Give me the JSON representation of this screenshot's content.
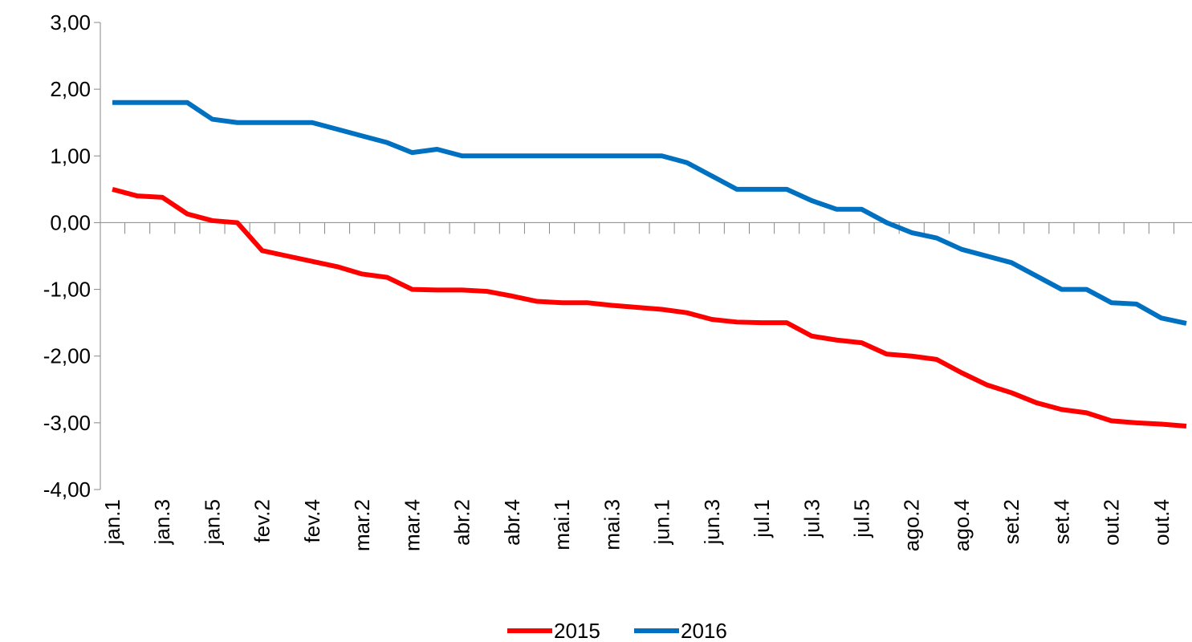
{
  "chart_data": {
    "type": "line",
    "categories": [
      "jan.1",
      null,
      "jan.3",
      null,
      "jan.5",
      null,
      "fev.2",
      null,
      "fev.4",
      null,
      "mar.2",
      null,
      "mar.4",
      null,
      "abr.2",
      null,
      "abr.4",
      null,
      "mai.1",
      null,
      "mai.3",
      null,
      "jun.1",
      null,
      "jun.3",
      null,
      "jul.1",
      null,
      "jul.3",
      null,
      "jul.5",
      null,
      "ago.2",
      null,
      "ago.4",
      null,
      "set.2",
      null,
      "set.4",
      null,
      "out.2",
      null,
      "out.4",
      null
    ],
    "series": [
      {
        "name": "2015",
        "color": "#ff0000",
        "values": [
          0.5,
          0.4,
          0.38,
          0.13,
          0.03,
          0.0,
          -0.42,
          -0.5,
          -0.58,
          -0.66,
          -0.77,
          -0.82,
          -1.0,
          -1.01,
          -1.01,
          -1.03,
          -1.1,
          -1.18,
          -1.2,
          -1.2,
          -1.24,
          -1.27,
          -1.3,
          -1.35,
          -1.45,
          -1.49,
          -1.5,
          -1.5,
          -1.7,
          -1.76,
          -1.8,
          -1.97,
          -2.0,
          -2.05,
          -2.25,
          -2.43,
          -2.55,
          -2.7,
          -2.8,
          -2.85,
          -2.97,
          -3.0,
          -3.02,
          -3.05
        ]
      },
      {
        "name": "2016",
        "color": "#0070c0",
        "values": [
          1.8,
          1.8,
          1.8,
          1.8,
          1.55,
          1.5,
          1.5,
          1.5,
          1.5,
          1.4,
          1.3,
          1.2,
          1.05,
          1.1,
          1.0,
          1.0,
          1.0,
          1.0,
          1.0,
          1.0,
          1.0,
          1.0,
          1.0,
          0.9,
          0.7,
          0.5,
          0.5,
          0.5,
          0.33,
          0.2,
          0.2,
          0.0,
          -0.15,
          -0.23,
          -0.4,
          -0.5,
          -0.6,
          -0.8,
          -1.0,
          -1.0,
          -1.2,
          -1.22,
          -1.43,
          -1.51
        ]
      }
    ],
    "ylim": [
      -4,
      3
    ],
    "yticks": [
      {
        "value": -4,
        "label": "-4,00"
      },
      {
        "value": -3,
        "label": "-3,00"
      },
      {
        "value": -2,
        "label": "-2,00"
      },
      {
        "value": -1,
        "label": "-1,00"
      },
      {
        "value": 0,
        "label": "0,00"
      },
      {
        "value": 1,
        "label": "1,00"
      },
      {
        "value": 2,
        "label": "2,00"
      },
      {
        "value": 3,
        "label": "3,00"
      }
    ],
    "legend": "bottom"
  }
}
